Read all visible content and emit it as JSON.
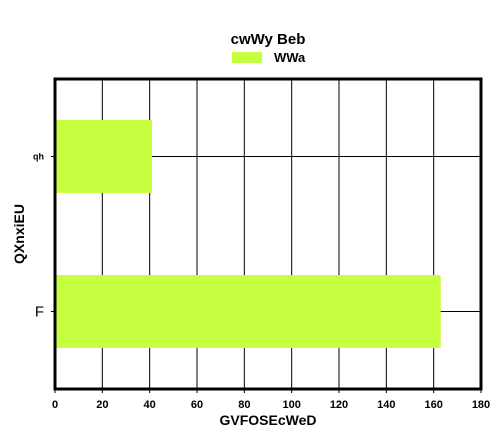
{
  "chart_data": {
    "type": "bar",
    "orientation": "horizontal",
    "title": "cwWy  Beb",
    "xlabel": "GVFOSEcWeD",
    "ylabel": "QXnxiEU",
    "categories": [
      "qh",
      "F"
    ],
    "series": [
      {
        "name": "WWa",
        "values": [
          41,
          163
        ],
        "color": "#c6ff40"
      }
    ],
    "xlim": [
      0,
      180
    ],
    "xticks": [
      0,
      20,
      40,
      60,
      80,
      100,
      120,
      140,
      160,
      180
    ],
    "grid": true,
    "legend_position": "top-center"
  }
}
